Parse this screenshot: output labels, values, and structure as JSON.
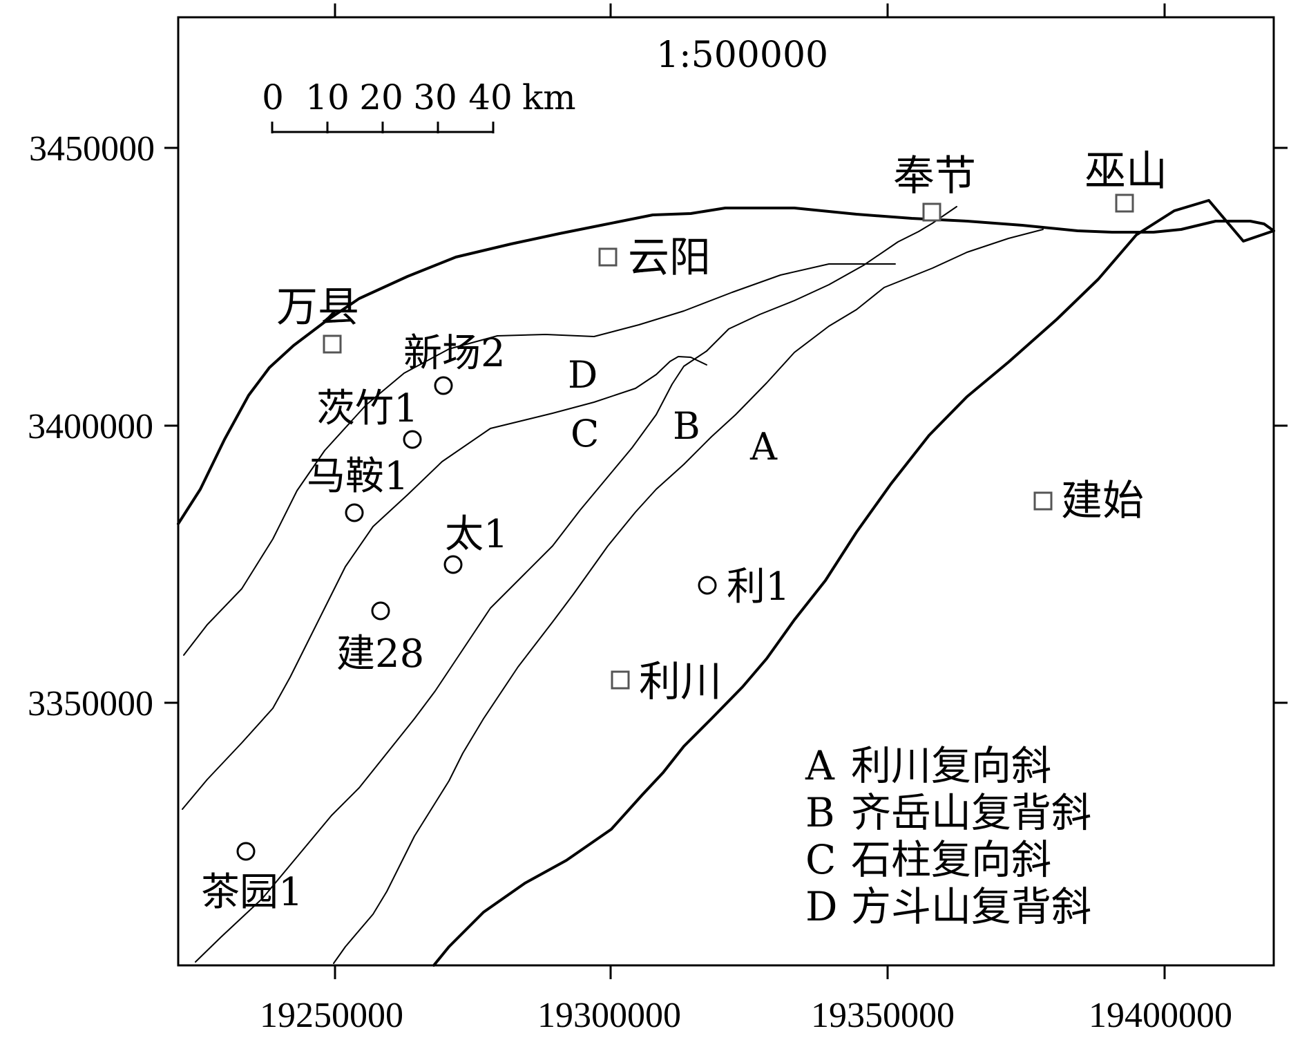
{
  "map": {
    "scale_text": "1:500000",
    "scale_bar": {
      "ticks": [
        "0",
        "10",
        "20",
        "30",
        "40"
      ],
      "unit": "km"
    },
    "x_axis": {
      "ticks": [
        "19250000",
        "19300000",
        "19350000",
        "19400000"
      ]
    },
    "y_axis": {
      "ticks": [
        "3450000",
        "3400000",
        "3350000"
      ]
    },
    "towns": [
      {
        "id": "fengjie",
        "label": "奉节"
      },
      {
        "id": "wushan",
        "label": "巫山"
      },
      {
        "id": "yunyang",
        "label": "云阳"
      },
      {
        "id": "wanxian",
        "label": "万县"
      },
      {
        "id": "jianshi",
        "label": "建始"
      },
      {
        "id": "lichuan",
        "label": "利川"
      }
    ],
    "wells": [
      {
        "id": "xinchang2",
        "label": "新场2"
      },
      {
        "id": "cizhu1",
        "label": "茨竹1"
      },
      {
        "id": "maan1",
        "label": "马鞍1"
      },
      {
        "id": "tai1",
        "label": "太1"
      },
      {
        "id": "jian28",
        "label": "建28"
      },
      {
        "id": "li1",
        "label": "利1"
      },
      {
        "id": "chayuan1",
        "label": "茶园1"
      }
    ],
    "zones": [
      {
        "id": "A",
        "label": "A"
      },
      {
        "id": "B",
        "label": "B"
      },
      {
        "id": "C",
        "label": "C"
      },
      {
        "id": "D",
        "label": "D"
      }
    ],
    "legend": [
      {
        "key": "A",
        "text": "利川复向斜"
      },
      {
        "key": "B",
        "text": "齐岳山复背斜"
      },
      {
        "key": "C",
        "text": "石柱复向斜"
      },
      {
        "key": "D",
        "text": "方斗山复背斜"
      }
    ],
    "colors": {
      "line": "#000000",
      "town_marker": "#555555",
      "background": "#ffffff"
    },
    "marker_types": {
      "town": "square",
      "well": "circle"
    }
  }
}
